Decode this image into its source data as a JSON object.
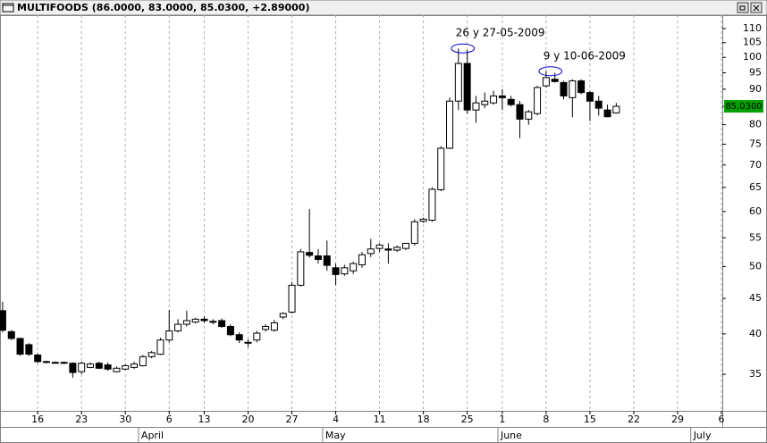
{
  "chart_data": {
    "type": "candlestick",
    "title": "MULTIFOODS (86.0000, 83.0000, 85.0300, +2.89000)",
    "log_scale": true,
    "grid": true,
    "up_color": "#ffffff",
    "down_color": "#000000",
    "annotation_color": "#0000cc",
    "annotations": [
      {
        "text": "26 y 27-05-2009",
        "candles": [
          52,
          53
        ]
      },
      {
        "text": "9 y 10-06-2009",
        "candles": [
          62,
          63
        ]
      }
    ],
    "last_price": {
      "value": 85.03,
      "label": "85.0300"
    },
    "xlim": [
      -0.3,
      82.1
    ],
    "ylim": [
      31,
      115
    ],
    "yticks": [
      35,
      40,
      45,
      50,
      55,
      60,
      65,
      70,
      75,
      80,
      85,
      90,
      95,
      100,
      105,
      110
    ],
    "xticks": [
      {
        "value": 4,
        "label": "16"
      },
      {
        "value": 9,
        "label": "23"
      },
      {
        "value": 14,
        "label": "30"
      },
      {
        "value": 19,
        "label": "6"
      },
      {
        "value": 23,
        "label": "13"
      },
      {
        "value": 28,
        "label": "20"
      },
      {
        "value": 33,
        "label": "27"
      },
      {
        "value": 38,
        "label": "4"
      },
      {
        "value": 43,
        "label": "11"
      },
      {
        "value": 48,
        "label": "18"
      },
      {
        "value": 53,
        "label": "25"
      },
      {
        "value": 57,
        "label": "1"
      },
      {
        "value": 62,
        "label": "8"
      },
      {
        "value": 67,
        "label": "15"
      },
      {
        "value": 72,
        "label": "22"
      },
      {
        "value": 77,
        "label": "29"
      },
      {
        "value": 82,
        "label": "6"
      }
    ],
    "month_ticks": [
      {
        "value": 15.5,
        "label": "April"
      },
      {
        "value": 36.5,
        "label": "May"
      },
      {
        "value": 56.5,
        "label": "June"
      },
      {
        "value": 78.5,
        "label": "July"
      }
    ],
    "open": [
      43.2,
      40.3,
      39.4,
      38.6,
      37.3,
      36.5,
      36.4,
      36.4,
      36.3,
      35.3,
      35.8,
      36.3,
      36.1,
      35.3,
      35.6,
      35.8,
      36.0,
      37.1,
      37.4,
      39.2,
      40.4,
      41.3,
      41.6,
      42.0,
      41.7,
      41.8,
      41.0,
      39.9,
      38.9,
      39.2,
      40.6,
      40.5,
      42.3,
      43.0,
      47.0,
      52.4,
      51.8,
      51.8,
      49.8,
      48.8,
      49.3,
      50.3,
      52.2,
      53.1,
      53.0,
      52.8,
      53.1,
      54.0,
      58.1,
      58.3,
      64.5,
      74.0,
      86.5,
      98.0,
      84.0,
      85.5,
      86.0,
      88.0,
      87.0,
      85.5,
      81.5,
      83.0,
      91.0,
      93.0,
      92.0,
      87.5,
      92.5,
      89.0,
      86.5,
      84.0,
      83.2
    ],
    "high": [
      44.5,
      40.5,
      39.5,
      38.8,
      37.5,
      36.6,
      36.5,
      36.5,
      36.4,
      36.5,
      36.4,
      36.5,
      36.4,
      35.9,
      36.2,
      36.5,
      37.3,
      37.8,
      39.5,
      43.3,
      42.0,
      43.2,
      42.2,
      42.4,
      42.0,
      42.1,
      41.3,
      40.2,
      39.3,
      40.4,
      41.3,
      41.9,
      43.0,
      47.5,
      53.0,
      60.5,
      53.0,
      54.5,
      50.5,
      50.3,
      50.8,
      52.5,
      54.8,
      54.0,
      54.0,
      53.6,
      54.1,
      58.5,
      58.8,
      65.0,
      74.5,
      87.5,
      103.0,
      102.5,
      88.0,
      89.0,
      89.5,
      90.0,
      88.0,
      86.5,
      84.0,
      91.0,
      95.5,
      95.0,
      92.5,
      93.0,
      93.0,
      89.5,
      88.0,
      85.5,
      86.0
    ],
    "low": [
      40.2,
      39.2,
      37.2,
      37.2,
      36.3,
      36.3,
      36.3,
      36.2,
      34.6,
      35.0,
      35.7,
      35.6,
      35.4,
      35.2,
      35.5,
      35.6,
      35.9,
      36.9,
      37.3,
      38.9,
      40.2,
      41.0,
      41.4,
      41.5,
      41.3,
      40.8,
      39.7,
      38.8,
      38.3,
      38.9,
      40.3,
      40.3,
      42.0,
      42.8,
      46.8,
      51.5,
      50.5,
      49.3,
      47.0,
      48.5,
      48.8,
      49.8,
      51.6,
      52.5,
      50.5,
      52.5,
      52.8,
      53.6,
      57.8,
      58.0,
      64.2,
      73.8,
      84.0,
      83.0,
      80.5,
      84.5,
      85.5,
      84.0,
      85.0,
      76.5,
      80.0,
      82.5,
      90.5,
      92.0,
      87.0,
      82.0,
      88.5,
      81.0,
      82.5,
      82.0,
      83.0
    ],
    "close": [
      40.5,
      39.4,
      37.4,
      37.4,
      36.5,
      36.4,
      36.4,
      36.3,
      35.2,
      36.3,
      36.2,
      35.7,
      35.6,
      35.7,
      36.0,
      36.2,
      37.1,
      37.6,
      39.2,
      40.4,
      41.3,
      41.8,
      42.0,
      41.8,
      41.6,
      41.0,
      39.9,
      39.2,
      38.8,
      40.1,
      41.0,
      41.5,
      42.8,
      47.0,
      52.5,
      51.9,
      51.2,
      50.2,
      48.7,
      49.8,
      50.5,
      52.0,
      53.0,
      53.7,
      52.8,
      53.3,
      54.0,
      58.0,
      58.5,
      64.6,
      74.0,
      86.5,
      98.0,
      84.0,
      86.0,
      86.5,
      88.0,
      87.5,
      85.5,
      81.5,
      83.5,
      90.5,
      93.5,
      92.3,
      88.0,
      92.5,
      89.0,
      86.5,
      84.5,
      82.14,
      85.03
    ]
  }
}
